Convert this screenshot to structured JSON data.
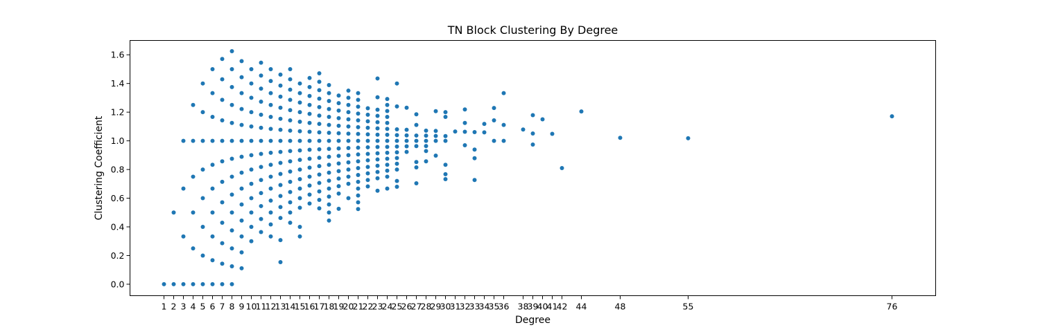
{
  "chart_data": {
    "type": "scatter",
    "title": "TN Block Clustering By Degree",
    "xlabel": "Degree",
    "ylabel": "Clustering Coefficient",
    "xlim": [
      -2.5,
      80.5
    ],
    "ylim": [
      -0.08,
      1.7
    ],
    "grid": false,
    "legend": "none",
    "marker_color": "#1f77b4",
    "xticks": [
      1,
      2,
      3,
      4,
      5,
      6,
      7,
      8,
      9,
      10,
      11,
      12,
      13,
      14,
      15,
      16,
      17,
      18,
      19,
      20,
      21,
      22,
      23,
      24,
      25,
      26,
      27,
      28,
      29,
      30,
      31,
      32,
      33,
      34,
      35,
      36,
      38,
      39,
      40,
      41,
      42,
      44,
      48,
      55,
      76
    ],
    "xtick_labels": [
      "1",
      "2",
      "3",
      "4",
      "5",
      "6",
      "7",
      "8",
      "9",
      "10",
      "11",
      "12",
      "13",
      "14",
      "15",
      "16",
      "17",
      "18",
      "19",
      "20",
      "21",
      "22",
      "23",
      "24",
      "25",
      "26",
      "27",
      "28",
      "29",
      "30",
      "31",
      "32",
      "33",
      "34",
      "35",
      "36",
      "38",
      "39",
      "40",
      "41",
      "42",
      "44",
      "48",
      "55",
      "76"
    ],
    "yticks": [
      0.0,
      0.2,
      0.4,
      0.6,
      0.8,
      1.0,
      1.2,
      1.4,
      1.6
    ],
    "ytick_labels": [
      "0.0",
      "0.2",
      "0.4",
      "0.6",
      "0.8",
      "1.0",
      "1.2",
      "1.4",
      "1.6"
    ],
    "points": [
      [
        1,
        0
      ],
      [
        2,
        0
      ],
      [
        3,
        0
      ],
      [
        4,
        0
      ],
      [
        5,
        0
      ],
      [
        6,
        0
      ],
      [
        7,
        0
      ],
      [
        8,
        0
      ],
      [
        2,
        0.5
      ],
      [
        3,
        0.333
      ],
      [
        3,
        0.667
      ],
      [
        3,
        1.0
      ],
      [
        4,
        0.25
      ],
      [
        4,
        0.5
      ],
      [
        4,
        0.75
      ],
      [
        4,
        1.0
      ],
      [
        4,
        1.25
      ],
      [
        5,
        0.2
      ],
      [
        5,
        0.4
      ],
      [
        5,
        0.6
      ],
      [
        5,
        0.8
      ],
      [
        5,
        1.0
      ],
      [
        5,
        1.2
      ],
      [
        5,
        1.4
      ],
      [
        6,
        0.167
      ],
      [
        6,
        0.333
      ],
      [
        6,
        0.5
      ],
      [
        6,
        0.667
      ],
      [
        6,
        0.833
      ],
      [
        6,
        1.0
      ],
      [
        6,
        1.167
      ],
      [
        6,
        1.333
      ],
      [
        6,
        1.5
      ],
      [
        7,
        0.143
      ],
      [
        7,
        0.286
      ],
      [
        7,
        0.429
      ],
      [
        7,
        0.571
      ],
      [
        7,
        0.714
      ],
      [
        7,
        0.857
      ],
      [
        7,
        1.0
      ],
      [
        7,
        1.143
      ],
      [
        7,
        1.286
      ],
      [
        7,
        1.429
      ],
      [
        7,
        1.571
      ],
      [
        8,
        0.125
      ],
      [
        8,
        0.25
      ],
      [
        8,
        0.375
      ],
      [
        8,
        0.5
      ],
      [
        8,
        0.625
      ],
      [
        8,
        0.75
      ],
      [
        8,
        0.875
      ],
      [
        8,
        1.0
      ],
      [
        8,
        1.125
      ],
      [
        8,
        1.25
      ],
      [
        8,
        1.375
      ],
      [
        8,
        1.5
      ],
      [
        8,
        1.625
      ],
      [
        9,
        0.111
      ],
      [
        9,
        0.222
      ],
      [
        9,
        0.333
      ],
      [
        9,
        0.444
      ],
      [
        9,
        0.556
      ],
      [
        9,
        0.667
      ],
      [
        9,
        0.778
      ],
      [
        9,
        0.889
      ],
      [
        9,
        1.0
      ],
      [
        9,
        1.111
      ],
      [
        9,
        1.222
      ],
      [
        9,
        1.333
      ],
      [
        9,
        1.444
      ],
      [
        9,
        1.556
      ],
      [
        10,
        0.3
      ],
      [
        10,
        0.4
      ],
      [
        10,
        0.5
      ],
      [
        10,
        0.6
      ],
      [
        10,
        0.7
      ],
      [
        10,
        0.8
      ],
      [
        10,
        0.9
      ],
      [
        10,
        1.0
      ],
      [
        10,
        1.1
      ],
      [
        10,
        1.2
      ],
      [
        10,
        1.3
      ],
      [
        10,
        1.4
      ],
      [
        10,
        1.5
      ],
      [
        11,
        0.364
      ],
      [
        11,
        0.455
      ],
      [
        11,
        0.545
      ],
      [
        11,
        0.636
      ],
      [
        11,
        0.727
      ],
      [
        11,
        0.818
      ],
      [
        11,
        0.909
      ],
      [
        11,
        1.0
      ],
      [
        11,
        1.091
      ],
      [
        11,
        1.182
      ],
      [
        11,
        1.273
      ],
      [
        11,
        1.364
      ],
      [
        11,
        1.455
      ],
      [
        11,
        1.545
      ],
      [
        12,
        0.333
      ],
      [
        12,
        0.417
      ],
      [
        12,
        0.5
      ],
      [
        12,
        0.583
      ],
      [
        12,
        0.667
      ],
      [
        12,
        0.75
      ],
      [
        12,
        0.833
      ],
      [
        12,
        0.917
      ],
      [
        12,
        1.0
      ],
      [
        12,
        1.083
      ],
      [
        12,
        1.167
      ],
      [
        12,
        1.25
      ],
      [
        12,
        1.333
      ],
      [
        12,
        1.417
      ],
      [
        12,
        1.5
      ],
      [
        13,
        0.154
      ],
      [
        13,
        0.308
      ],
      [
        13,
        0.462
      ],
      [
        13,
        0.538
      ],
      [
        13,
        0.615
      ],
      [
        13,
        0.692
      ],
      [
        13,
        0.769
      ],
      [
        13,
        0.846
      ],
      [
        13,
        0.923
      ],
      [
        13,
        1.0
      ],
      [
        13,
        1.077
      ],
      [
        13,
        1.154
      ],
      [
        13,
        1.231
      ],
      [
        13,
        1.308
      ],
      [
        13,
        1.385
      ],
      [
        13,
        1.462
      ],
      [
        14,
        0.429
      ],
      [
        14,
        0.5
      ],
      [
        14,
        0.571
      ],
      [
        14,
        0.643
      ],
      [
        14,
        0.714
      ],
      [
        14,
        0.786
      ],
      [
        14,
        0.857
      ],
      [
        14,
        0.929
      ],
      [
        14,
        1.0
      ],
      [
        14,
        1.071
      ],
      [
        14,
        1.143
      ],
      [
        14,
        1.214
      ],
      [
        14,
        1.286
      ],
      [
        14,
        1.357
      ],
      [
        14,
        1.429
      ],
      [
        14,
        1.5
      ],
      [
        15,
        0.333
      ],
      [
        15,
        0.4
      ],
      [
        15,
        0.533
      ],
      [
        15,
        0.6
      ],
      [
        15,
        0.667
      ],
      [
        15,
        0.733
      ],
      [
        15,
        0.8
      ],
      [
        15,
        0.867
      ],
      [
        15,
        0.933
      ],
      [
        15,
        1.0
      ],
      [
        15,
        1.067
      ],
      [
        15,
        1.133
      ],
      [
        15,
        1.2
      ],
      [
        15,
        1.267
      ],
      [
        15,
        1.333
      ],
      [
        15,
        1.4
      ],
      [
        16,
        0.563
      ],
      [
        16,
        0.625
      ],
      [
        16,
        0.688
      ],
      [
        16,
        0.75
      ],
      [
        16,
        0.813
      ],
      [
        16,
        0.875
      ],
      [
        16,
        0.938
      ],
      [
        16,
        1.0
      ],
      [
        16,
        1.063
      ],
      [
        16,
        1.125
      ],
      [
        16,
        1.188
      ],
      [
        16,
        1.25
      ],
      [
        16,
        1.313
      ],
      [
        16,
        1.375
      ],
      [
        16,
        1.438
      ],
      [
        17,
        0.529
      ],
      [
        17,
        0.588
      ],
      [
        17,
        0.647
      ],
      [
        17,
        0.706
      ],
      [
        17,
        0.765
      ],
      [
        17,
        0.824
      ],
      [
        17,
        0.882
      ],
      [
        17,
        0.941
      ],
      [
        17,
        1.0
      ],
      [
        17,
        1.059
      ],
      [
        17,
        1.118
      ],
      [
        17,
        1.176
      ],
      [
        17,
        1.235
      ],
      [
        17,
        1.294
      ],
      [
        17,
        1.353
      ],
      [
        17,
        1.412
      ],
      [
        17,
        1.471
      ],
      [
        18,
        0.444
      ],
      [
        18,
        0.5
      ],
      [
        18,
        0.556
      ],
      [
        18,
        0.611
      ],
      [
        18,
        0.667
      ],
      [
        18,
        0.722
      ],
      [
        18,
        0.778
      ],
      [
        18,
        0.833
      ],
      [
        18,
        0.889
      ],
      [
        18,
        0.944
      ],
      [
        18,
        1.0
      ],
      [
        18,
        1.056
      ],
      [
        18,
        1.111
      ],
      [
        18,
        1.167
      ],
      [
        18,
        1.222
      ],
      [
        18,
        1.278
      ],
      [
        18,
        1.333
      ],
      [
        18,
        1.389
      ],
      [
        19,
        0.526
      ],
      [
        19,
        0.632
      ],
      [
        19,
        0.684
      ],
      [
        19,
        0.737
      ],
      [
        19,
        0.789
      ],
      [
        19,
        0.842
      ],
      [
        19,
        0.895
      ],
      [
        19,
        0.947
      ],
      [
        19,
        1.0
      ],
      [
        19,
        1.053
      ],
      [
        19,
        1.105
      ],
      [
        19,
        1.158
      ],
      [
        19,
        1.211
      ],
      [
        19,
        1.263
      ],
      [
        19,
        1.316
      ],
      [
        20,
        0.6
      ],
      [
        20,
        0.7
      ],
      [
        20,
        0.75
      ],
      [
        20,
        0.8
      ],
      [
        20,
        0.85
      ],
      [
        20,
        0.9
      ],
      [
        20,
        0.95
      ],
      [
        20,
        1.0
      ],
      [
        20,
        1.05
      ],
      [
        20,
        1.1
      ],
      [
        20,
        1.15
      ],
      [
        20,
        1.2
      ],
      [
        20,
        1.25
      ],
      [
        20,
        1.3
      ],
      [
        20,
        1.35
      ],
      [
        21,
        0.524
      ],
      [
        21,
        0.571
      ],
      [
        21,
        0.619
      ],
      [
        21,
        0.667
      ],
      [
        21,
        0.714
      ],
      [
        21,
        0.762
      ],
      [
        21,
        0.81
      ],
      [
        21,
        0.857
      ],
      [
        21,
        0.905
      ],
      [
        21,
        0.952
      ],
      [
        21,
        1.0
      ],
      [
        21,
        1.048
      ],
      [
        21,
        1.095
      ],
      [
        21,
        1.143
      ],
      [
        21,
        1.19
      ],
      [
        21,
        1.238
      ],
      [
        21,
        1.286
      ],
      [
        21,
        1.333
      ],
      [
        22,
        0.682
      ],
      [
        22,
        0.727
      ],
      [
        22,
        0.773
      ],
      [
        22,
        0.818
      ],
      [
        22,
        0.864
      ],
      [
        22,
        0.909
      ],
      [
        22,
        0.955
      ],
      [
        22,
        1.0
      ],
      [
        22,
        1.045
      ],
      [
        22,
        1.091
      ],
      [
        22,
        1.136
      ],
      [
        22,
        1.182
      ],
      [
        22,
        1.227
      ],
      [
        23,
        0.652
      ],
      [
        23,
        0.739
      ],
      [
        23,
        0.783
      ],
      [
        23,
        0.826
      ],
      [
        23,
        0.87
      ],
      [
        23,
        0.913
      ],
      [
        23,
        0.957
      ],
      [
        23,
        1.0
      ],
      [
        23,
        1.043
      ],
      [
        23,
        1.087
      ],
      [
        23,
        1.13
      ],
      [
        23,
        1.174
      ],
      [
        23,
        1.217
      ],
      [
        23,
        1.304
      ],
      [
        23,
        1.435
      ],
      [
        24,
        0.667
      ],
      [
        24,
        0.75
      ],
      [
        24,
        0.792
      ],
      [
        24,
        0.833
      ],
      [
        24,
        0.875
      ],
      [
        24,
        0.917
      ],
      [
        24,
        0.958
      ],
      [
        24,
        1.0
      ],
      [
        24,
        1.042
      ],
      [
        24,
        1.083
      ],
      [
        24,
        1.125
      ],
      [
        24,
        1.167
      ],
      [
        24,
        1.208
      ],
      [
        24,
        1.25
      ],
      [
        24,
        1.292
      ],
      [
        25,
        0.68
      ],
      [
        25,
        0.72
      ],
      [
        25,
        0.8
      ],
      [
        25,
        0.84
      ],
      [
        25,
        0.88
      ],
      [
        25,
        0.92
      ],
      [
        25,
        0.96
      ],
      [
        25,
        1.0
      ],
      [
        25,
        1.04
      ],
      [
        25,
        1.08
      ],
      [
        25,
        1.24
      ],
      [
        25,
        1.4
      ],
      [
        26,
        0.923
      ],
      [
        26,
        0.962
      ],
      [
        26,
        1.0
      ],
      [
        26,
        1.038
      ],
      [
        26,
        1.077
      ],
      [
        26,
        1.231
      ],
      [
        27,
        0.704
      ],
      [
        27,
        0.815
      ],
      [
        27,
        0.852
      ],
      [
        27,
        0.963
      ],
      [
        27,
        1.0
      ],
      [
        27,
        1.037
      ],
      [
        27,
        1.111
      ],
      [
        27,
        1.185
      ],
      [
        28,
        0.857
      ],
      [
        28,
        0.929
      ],
      [
        28,
        0.964
      ],
      [
        28,
        1.0
      ],
      [
        28,
        1.036
      ],
      [
        28,
        1.071
      ],
      [
        29,
        0.897
      ],
      [
        29,
        1.0
      ],
      [
        29,
        1.034
      ],
      [
        29,
        1.069
      ],
      [
        29,
        1.207
      ],
      [
        30,
        0.733
      ],
      [
        30,
        0.767
      ],
      [
        30,
        0.833
      ],
      [
        30,
        1.0
      ],
      [
        30,
        1.033
      ],
      [
        30,
        1.167
      ],
      [
        30,
        1.2
      ],
      [
        31,
        1.065
      ],
      [
        32,
        0.969
      ],
      [
        32,
        1.063
      ],
      [
        32,
        1.125
      ],
      [
        32,
        1.219
      ],
      [
        33,
        0.727
      ],
      [
        33,
        0.879
      ],
      [
        33,
        0.939
      ],
      [
        33,
        1.061
      ],
      [
        34,
        1.059
      ],
      [
        34,
        1.118
      ],
      [
        35,
        1.0
      ],
      [
        35,
        1.143
      ],
      [
        35,
        1.229
      ],
      [
        36,
        1.0
      ],
      [
        36,
        1.111
      ],
      [
        36,
        1.333
      ],
      [
        38,
        1.079
      ],
      [
        39,
        0.974
      ],
      [
        39,
        1.051
      ],
      [
        39,
        1.179
      ],
      [
        40,
        1.15
      ],
      [
        41,
        1.049
      ],
      [
        42,
        0.81
      ],
      [
        44,
        1.205
      ],
      [
        48,
        1.021
      ],
      [
        55,
        1.018
      ],
      [
        76,
        1.171
      ]
    ]
  }
}
